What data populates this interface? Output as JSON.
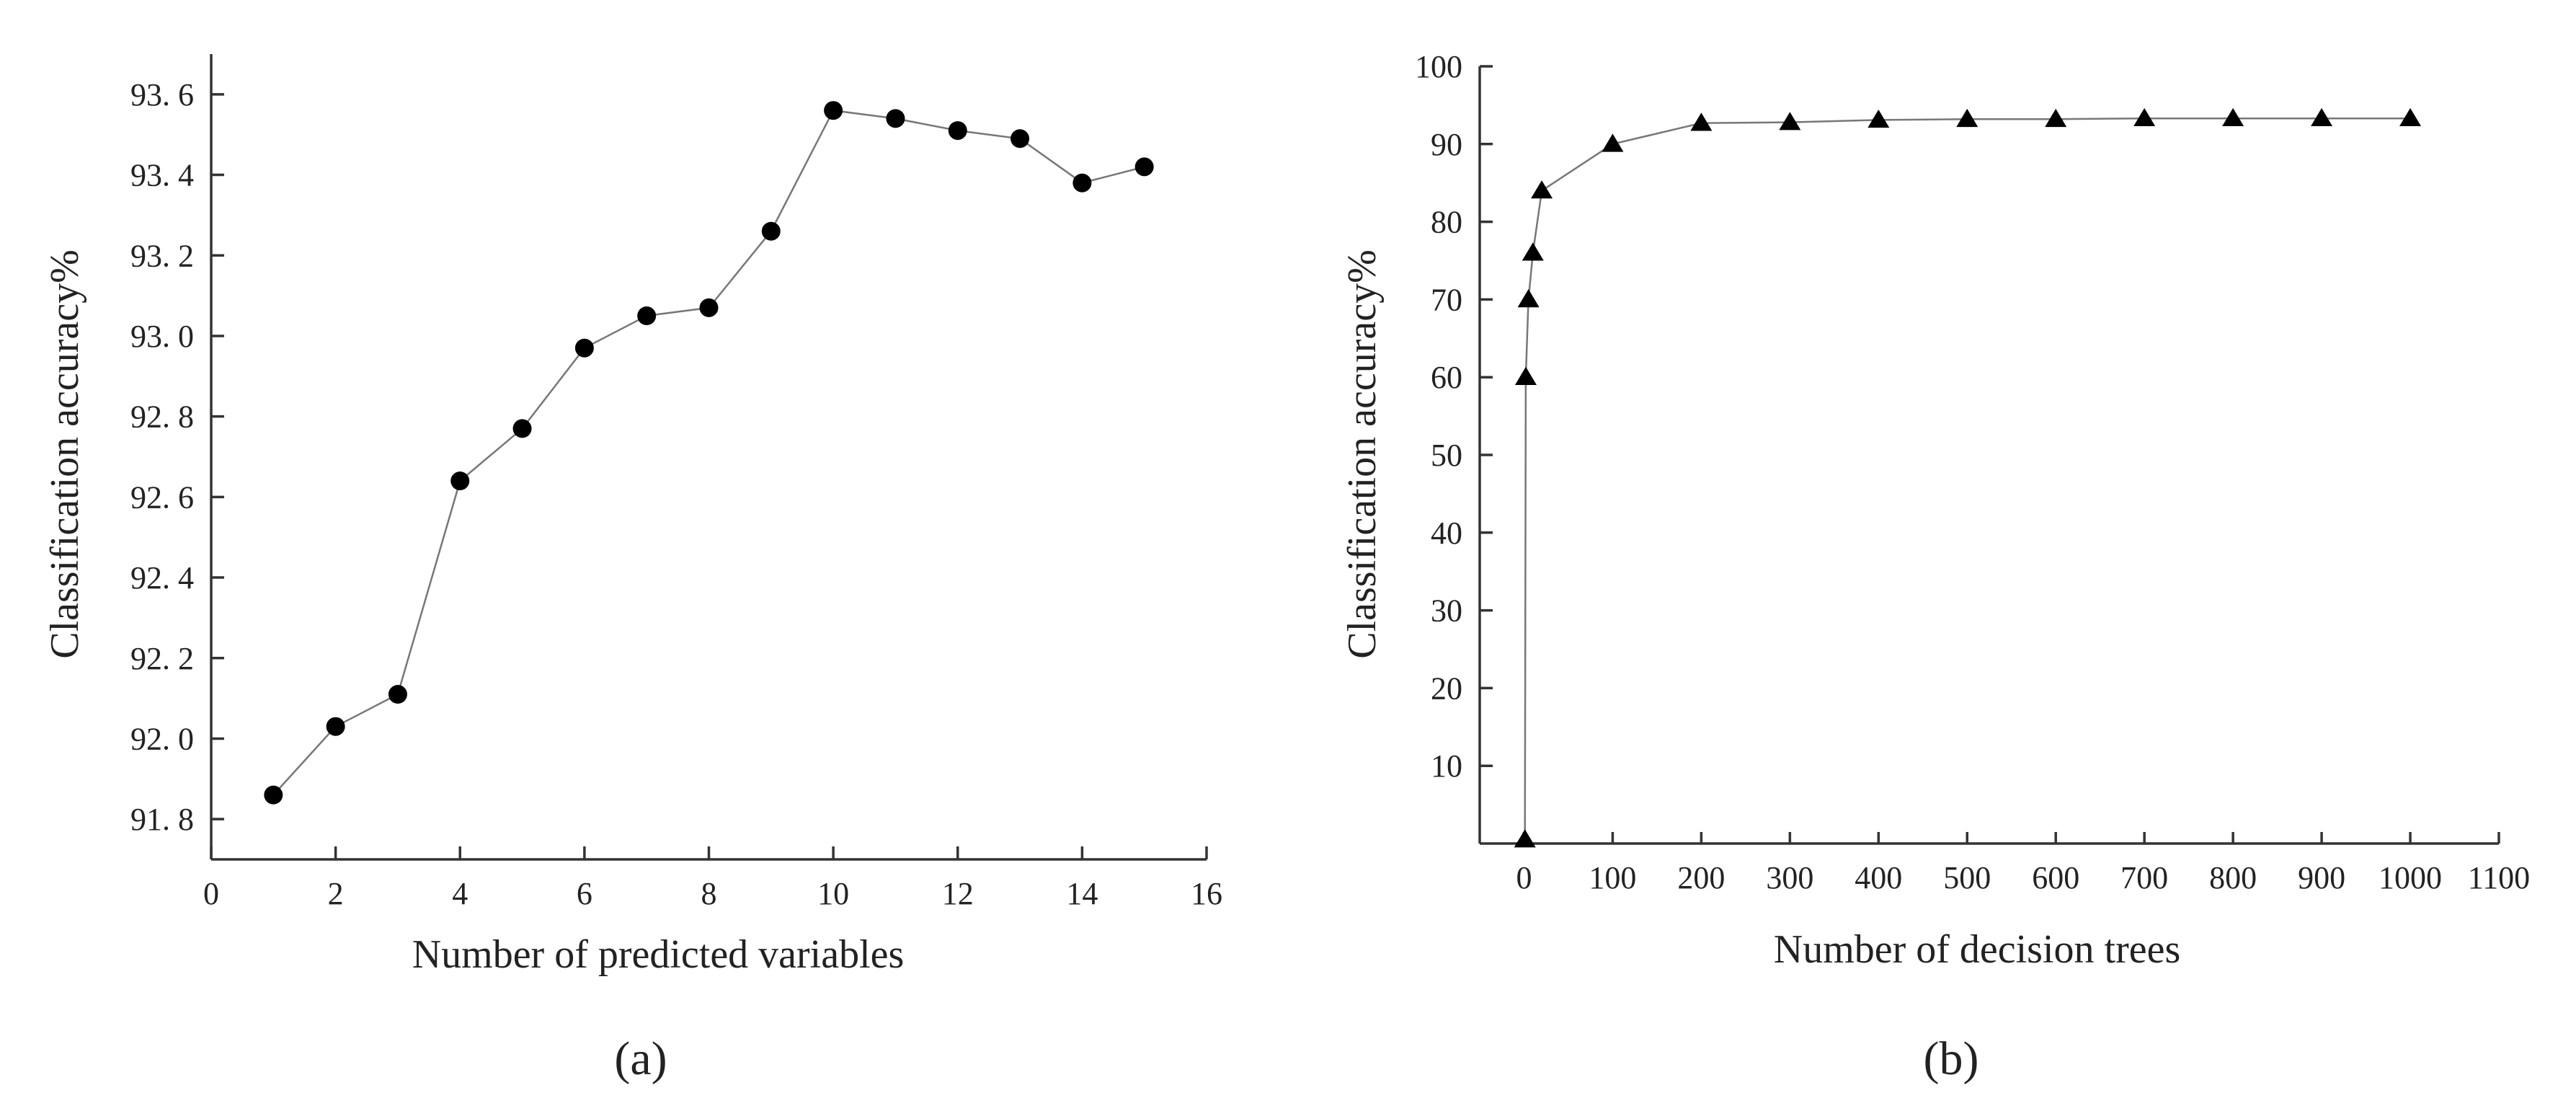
{
  "chart_data": [
    {
      "type": "line",
      "panel_label": "(a)",
      "xlabel": "Number of predicted variables",
      "ylabel": "Classification accuracy%",
      "xlim": [
        0,
        16
      ],
      "ylim": [
        91.7,
        93.7
      ],
      "xticks": [
        "0",
        "2",
        "4",
        "6",
        "8",
        "10",
        "12",
        "14",
        "16"
      ],
      "yticks": [
        "91. 8",
        "92. 0",
        "92. 2",
        "92. 4",
        "92. 6",
        "92. 8",
        "93. 0",
        "93. 2",
        "93. 4",
        "93. 6"
      ],
      "marker": "circle",
      "series": [
        {
          "x": [
            1,
            2,
            3,
            4,
            5,
            6,
            7,
            8,
            9,
            10,
            11,
            12,
            13,
            14,
            15
          ],
          "values": [
            91.86,
            92.03,
            92.11,
            92.64,
            92.77,
            92.97,
            93.05,
            93.07,
            93.26,
            93.56,
            93.54,
            93.51,
            93.49,
            93.38,
            93.42
          ]
        }
      ],
      "grid": false,
      "colors": {
        "line": "#777777",
        "marker": "#000000",
        "axis": "#333333"
      }
    },
    {
      "type": "line",
      "panel_label": "(b)",
      "xlabel": "Number of decision trees",
      "ylabel": "Classification accuracy%",
      "xlim": [
        -50,
        1100
      ],
      "ylim": [
        0,
        100
      ],
      "xticks": [
        "0",
        "100",
        "200",
        "300",
        "400",
        "500",
        "600",
        "700",
        "800",
        "900",
        "1000",
        "1100"
      ],
      "yticks": [
        "10",
        "20",
        "30",
        "40",
        "50",
        "60",
        "70",
        "80",
        "90",
        "100"
      ],
      "marker": "triangle",
      "series": [
        {
          "x": [
            1,
            2,
            5,
            10,
            20,
            100,
            200,
            300,
            400,
            500,
            600,
            700,
            800,
            900,
            1000
          ],
          "values": [
            0.5,
            60,
            70,
            76,
            84,
            90,
            92.7,
            92.8,
            93.1,
            93.2,
            93.2,
            93.3,
            93.3,
            93.3,
            93.3
          ]
        }
      ],
      "grid": false,
      "colors": {
        "line": "#777777",
        "marker": "#000000",
        "axis": "#333333"
      }
    }
  ]
}
